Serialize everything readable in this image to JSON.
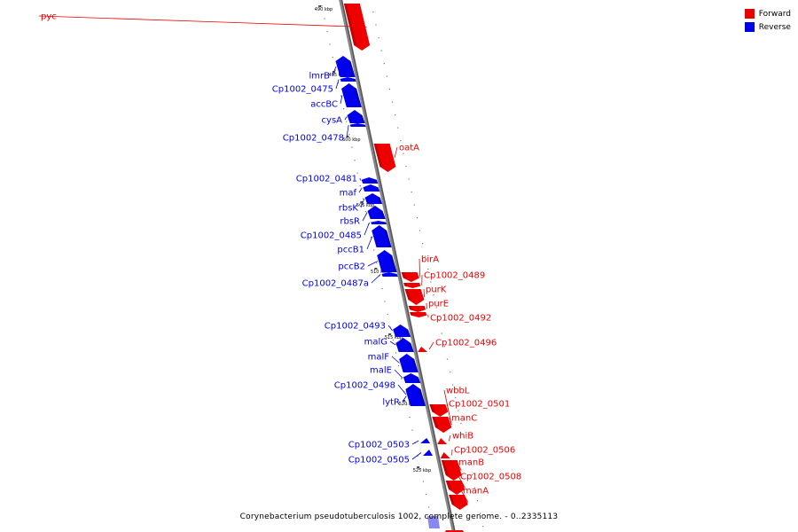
{
  "caption": "Corynebacterium pseudotuberculosis 1002, complete genome. - 0..2335113",
  "legend": [
    {
      "label": "Forward",
      "color": "#ee0000"
    },
    {
      "label": "Reverse",
      "color": "#0000ee"
    }
  ],
  "colors": {
    "forward": "#ee0000",
    "reverse": "#0000ee",
    "backbone": "#888888",
    "pale_reverse": "#8888ee"
  },
  "kbp_marks": [
    {
      "label": "490 kbp",
      "kbp": 490
    },
    {
      "label": "495 kbp",
      "kbp": 495
    },
    {
      "label": "500 kbp",
      "kbp": 500
    },
    {
      "label": "505 kbp",
      "kbp": 505
    },
    {
      "label": "510 kbp",
      "kbp": 510
    },
    {
      "label": "515 kbp",
      "kbp": 515
    },
    {
      "label": "520 kbp",
      "kbp": 520
    },
    {
      "label": "525 kbp",
      "kbp": 525
    }
  ],
  "genes": [
    {
      "name": "pyc",
      "strand": "forward"
    },
    {
      "name": "lmrB",
      "strand": "reverse"
    },
    {
      "name": "Cp1002_0475",
      "strand": "reverse"
    },
    {
      "name": "accBC",
      "strand": "reverse"
    },
    {
      "name": "cysA",
      "strand": "reverse"
    },
    {
      "name": "Cp1002_0478",
      "strand": "reverse"
    },
    {
      "name": "oatA",
      "strand": "forward"
    },
    {
      "name": "Cp1002_0481",
      "strand": "reverse"
    },
    {
      "name": "maf",
      "strand": "reverse"
    },
    {
      "name": "rbsK",
      "strand": "reverse"
    },
    {
      "name": "rbsR",
      "strand": "reverse"
    },
    {
      "name": "Cp1002_0485",
      "strand": "reverse"
    },
    {
      "name": "pccB1",
      "strand": "reverse"
    },
    {
      "name": "pccB2",
      "strand": "reverse"
    },
    {
      "name": "Cp1002_0487a",
      "strand": "reverse"
    },
    {
      "name": "birA",
      "strand": "forward"
    },
    {
      "name": "Cp1002_0489",
      "strand": "forward"
    },
    {
      "name": "purK",
      "strand": "forward"
    },
    {
      "name": "purE",
      "strand": "forward"
    },
    {
      "name": "Cp1002_0492",
      "strand": "forward"
    },
    {
      "name": "Cp1002_0493",
      "strand": "reverse"
    },
    {
      "name": "Cp1002_0496",
      "strand": "forward"
    },
    {
      "name": "malG",
      "strand": "reverse"
    },
    {
      "name": "malF",
      "strand": "reverse"
    },
    {
      "name": "malE",
      "strand": "reverse"
    },
    {
      "name": "Cp1002_0498",
      "strand": "reverse"
    },
    {
      "name": "lytR",
      "strand": "reverse"
    },
    {
      "name": "wbbL",
      "strand": "forward"
    },
    {
      "name": "Cp1002_0501",
      "strand": "forward"
    },
    {
      "name": "manC",
      "strand": "forward"
    },
    {
      "name": "whiB",
      "strand": "forward"
    },
    {
      "name": "Cp1002_0503",
      "strand": "reverse"
    },
    {
      "name": "Cp1002_0506",
      "strand": "forward"
    },
    {
      "name": "Cp1002_0505",
      "strand": "reverse"
    },
    {
      "name": "manB",
      "strand": "forward"
    },
    {
      "name": "Cp1002_0508",
      "strand": "forward"
    },
    {
      "name": "manA",
      "strand": "forward"
    }
  ]
}
